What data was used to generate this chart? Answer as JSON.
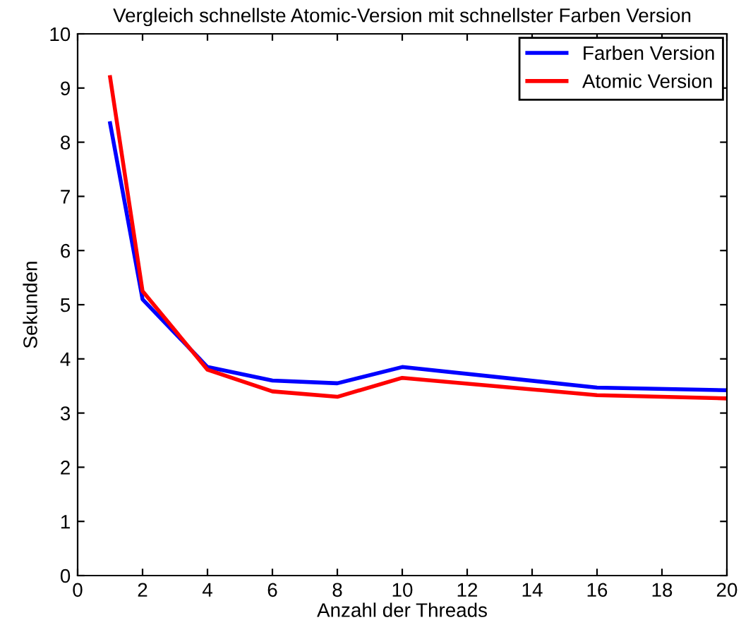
{
  "chart_data": {
    "type": "line",
    "title": "Vergleich schnellste Atomic-Version mit schnellster Farben Version",
    "xlabel": "Anzahl der Threads",
    "ylabel": "Sekunden",
    "x": [
      1,
      2,
      4,
      6,
      8,
      10,
      16,
      20
    ],
    "series": [
      {
        "name": "Farben Version",
        "color": "#0000ff",
        "values": [
          8.35,
          5.1,
          3.85,
          3.6,
          3.55,
          3.85,
          3.47,
          3.42
        ]
      },
      {
        "name": "Atomic Version",
        "color": "#ff0000",
        "values": [
          9.2,
          5.25,
          3.8,
          3.4,
          3.3,
          3.65,
          3.33,
          3.27
        ]
      }
    ],
    "xlim": [
      0,
      20
    ],
    "xticks": [
      0,
      2,
      4,
      6,
      8,
      10,
      12,
      14,
      16,
      18,
      20
    ],
    "ylim": [
      0,
      10
    ],
    "yticks": [
      0,
      1,
      2,
      3,
      4,
      5,
      6,
      7,
      8,
      9,
      10
    ],
    "grid": false,
    "legend": "top right",
    "marker": "none",
    "line_style": "solid"
  }
}
